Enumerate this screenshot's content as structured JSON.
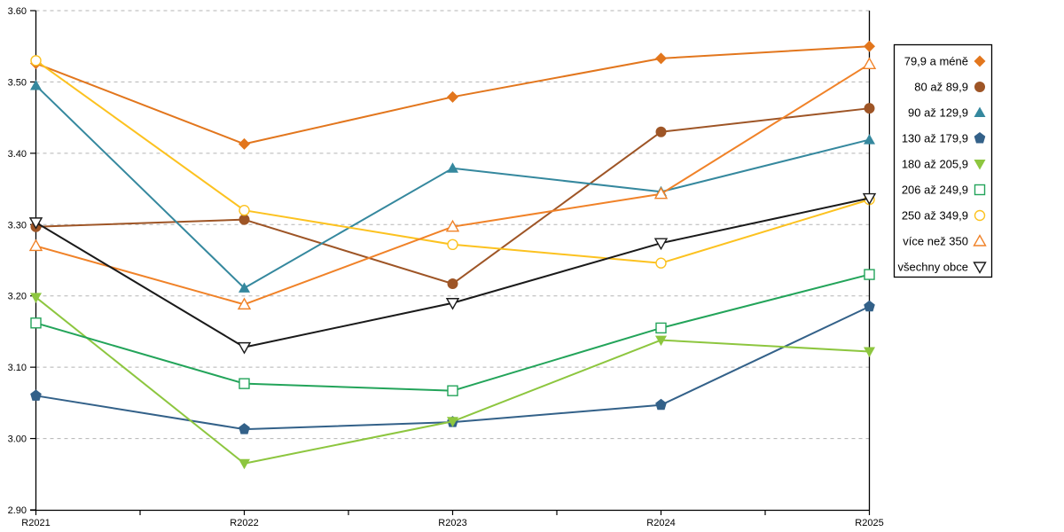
{
  "chart_data": {
    "type": "line",
    "title": "",
    "xlabel": "",
    "ylabel": "",
    "x_categories": [
      "R2021",
      "R2022",
      "R2023",
      "R2024",
      "R2025"
    ],
    "y_tick_labels": [
      "2.90",
      "3.00",
      "3.10",
      "3.20",
      "3.30",
      "3.40",
      "3.50",
      "3.60"
    ],
    "ylim": [
      2.9,
      3.6
    ],
    "grid": "horizontal-dashed-gray",
    "legend_position": "right",
    "colors": {
      "grid": "#b3b3b3",
      "axis": "#000000",
      "background": "#ffffff"
    },
    "series": [
      {
        "name": "79,9 a méně",
        "color": "#e2761d",
        "marker": "diamond-filled",
        "values": [
          3.526,
          3.413,
          3.479,
          3.533,
          3.55
        ]
      },
      {
        "name": "80 až 89,9",
        "color": "#9e5526",
        "marker": "circle-filled",
        "values": [
          3.297,
          3.307,
          3.217,
          3.43,
          3.463
        ]
      },
      {
        "name": "90 až 129,9",
        "color": "#35889e",
        "marker": "triangle-up-filled",
        "values": [
          3.495,
          3.211,
          3.379,
          3.346,
          3.419
        ]
      },
      {
        "name": "130 až 179,9",
        "color": "#336189",
        "marker": "pentagon-filled",
        "values": [
          3.06,
          3.013,
          3.023,
          3.047,
          3.185
        ]
      },
      {
        "name": "180 až 205,9",
        "color": "#8dc63f",
        "marker": "triangle-down-filled",
        "values": [
          3.198,
          2.965,
          3.024,
          3.138,
          3.122
        ]
      },
      {
        "name": "206 až 249,9",
        "color": "#23a45a",
        "marker": "square-open",
        "values": [
          3.162,
          3.077,
          3.067,
          3.155,
          3.23
        ]
      },
      {
        "name": "250 až 349,9",
        "color": "#fcc220",
        "marker": "circle-open",
        "values": [
          3.53,
          3.32,
          3.272,
          3.246,
          3.335
        ]
      },
      {
        "name": "více než 350",
        "color": "#f08228",
        "marker": "triangle-up-open",
        "values": [
          3.27,
          3.188,
          3.297,
          3.343,
          3.525
        ]
      },
      {
        "name": "všechny obce",
        "color": "#1a1a1a",
        "marker": "triangle-down-open",
        "values": [
          3.303,
          3.128,
          3.19,
          3.274,
          3.337
        ]
      }
    ]
  }
}
